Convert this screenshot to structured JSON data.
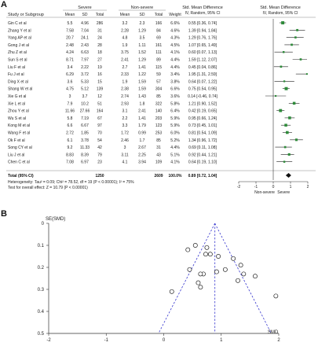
{
  "panels": {
    "a": "A",
    "b": "B"
  },
  "chart_data": [
    {
      "type": "table",
      "headers": {
        "study": "Study or Subgroup",
        "group1": "Severe",
        "group2": "Non-severe",
        "stat1": "Std. Mean Difference",
        "stat2": "Std. Mean Difference",
        "stat1_sub": "IV, Random, 95% CI",
        "stat2_sub": "IV, Random, 95% CI",
        "cols": [
          "Mean",
          "SD",
          "Total",
          "Mean",
          "SD",
          "Total",
          "Weight"
        ]
      },
      "studies": [
        {
          "name": "Gin C et al",
          "m1": "5.5",
          "sd1": "4.96",
          "n1": "286",
          "m2": "3.2",
          "sd2": "2.3",
          "n2": "166",
          "w": "6.6%",
          "ci": "0.55 [0.36, 0.74]",
          "smd": 0.55,
          "lo": 0.36,
          "hi": 0.74
        },
        {
          "name": "Zhang Y et al",
          "m1": "7.58",
          "sd1": "7.04",
          "n1": "31",
          "m2": "2.28",
          "sd2": "1.29",
          "n2": "84",
          "w": "4.6%",
          "ci": "1.39 [0.94, 1.84]",
          "smd": 1.39,
          "lo": 0.94,
          "hi": 1.84
        },
        {
          "name": "Yang AP et al",
          "m1": "20.7",
          "sd1": "24.1",
          "n1": "24",
          "m2": "4.8",
          "sd2": "3.5",
          "n2": "69",
          "w": "4.3%",
          "ci": "1.29 [0.76, 1.76]",
          "smd": 1.29,
          "lo": 0.76,
          "hi": 1.76
        },
        {
          "name": "Gong J et al",
          "m1": "2.48",
          "sd1": "2.43",
          "n1": "28",
          "m2": "1.9",
          "sd2": "1.11",
          "n2": "161",
          "w": "4.5%",
          "ci": "1.07 [0.65, 1.49]",
          "smd": 1.07,
          "lo": 0.65,
          "hi": 1.49
        },
        {
          "name": "Zhu Z et al",
          "m1": "4.24",
          "sd1": "6.63",
          "n1": "18",
          "m2": "3.75",
          "sd2": "1.52",
          "n2": "111",
          "w": "4.1%",
          "ci": "0.60 [0.07, 1.13]",
          "smd": 0.6,
          "lo": 0.07,
          "hi": 1.13
        },
        {
          "name": "Sun S et al",
          "m1": "8.71",
          "sd1": "7.97",
          "n1": "27",
          "m2": "2.41",
          "sd2": "1.29",
          "n2": "89",
          "w": "4.4%",
          "ci": "1.59 [1.12, 2.07]",
          "smd": 1.59,
          "lo": 1.12,
          "hi": 2.07
        },
        {
          "name": "Liu F et al",
          "m1": "3.4",
          "sd1": "2.22",
          "n1": "19",
          "m2": "2.7",
          "sd2": "1.41",
          "n2": "115",
          "w": "4.4%",
          "ci": "0.45 [0.04, 0.86]",
          "smd": 0.45,
          "lo": 0.04,
          "hi": 0.86
        },
        {
          "name": "Fu J et al",
          "m1": "6.29",
          "sd1": "3.72",
          "n1": "16",
          "m2": "2.33",
          "sd2": "1.22",
          "n2": "59",
          "w": "3.4%",
          "ci": "1.95 [1.31, 2.59]",
          "smd": 1.95,
          "lo": 1.31,
          "hi": 2.59
        },
        {
          "name": "Ding X et al",
          "m1": "3.6",
          "sd1": "5.33",
          "n1": "15",
          "m2": "1.9",
          "sd2": "1.59",
          "n2": "57",
          "w": "3.8%",
          "ci": "0.64 [0.07, 1.22]",
          "smd": 0.64,
          "lo": 0.07,
          "hi": 1.22
        },
        {
          "name": "Shang W et al",
          "m1": "4.75",
          "sd1": "5.12",
          "n1": "139",
          "m2": "2.38",
          "sd2": "1.59",
          "n2": "304",
          "w": "6.6%",
          "ci": "0.75 [0.54, 0.95]",
          "smd": 0.75,
          "lo": 0.54,
          "hi": 0.95
        },
        {
          "name": "Xie G et al",
          "m1": "3",
          "sd1": "3.7",
          "n1": "12",
          "m2": "2.74",
          "sd2": "1.43",
          "n2": "85",
          "w": "3.6%",
          "ci": "0.14 [-0.46, 0.74]",
          "smd": 0.14,
          "lo": -0.46,
          "hi": 0.74
        },
        {
          "name": "Xie L et al",
          "m1": "7.9",
          "sd1": "10.2",
          "n1": "51",
          "m2": "2.93",
          "sd2": "1.8",
          "n2": "322",
          "w": "5.8%",
          "ci": "1.21 [0.90, 1.52]",
          "smd": 1.21,
          "lo": 0.9,
          "hi": 1.52
        },
        {
          "name": "Zhou Y et al",
          "m1": "11.66",
          "sd1": "27.66",
          "n1": "164",
          "m2": "3.1",
          "sd2": "2.41",
          "n2": "140",
          "w": "6.4%",
          "ci": "0.42 [0.19, 0.65]",
          "smd": 0.42,
          "lo": 0.19,
          "hi": 0.65
        },
        {
          "name": "Wu S et al",
          "m1": "5.8",
          "sd1": "7.19",
          "n1": "67",
          "m2": "2.2",
          "sd2": "1.41",
          "n2": "203",
          "w": "5.9%",
          "ci": "0.95 [0.66, 1.24]",
          "smd": 0.95,
          "lo": 0.66,
          "hi": 1.24
        },
        {
          "name": "Kong M et al",
          "m1": "6.6",
          "sd1": "6.67",
          "n1": "97",
          "m2": "3.3",
          "sd2": "1.79",
          "n2": "123",
          "w": "5.9%",
          "ci": "0.73 [0.45, 1.01]",
          "smd": 0.73,
          "lo": 0.45,
          "hi": 1.01
        },
        {
          "name": "Wang F et al",
          "m1": "2.72",
          "sd1": "1.85",
          "n1": "70",
          "m2": "1.72",
          "sd2": "0.99",
          "n2": "253",
          "w": "6.0%",
          "ci": "0.81 [0.54, 1.09]",
          "smd": 0.81,
          "lo": 0.54,
          "hi": 1.09
        },
        {
          "name": "Ok F et al",
          "m1": "6.1",
          "sd1": "3.78",
          "n1": "54",
          "m2": "2.46",
          "sd2": "1.7",
          "n2": "85",
          "w": "5.2%",
          "ci": "1.34 [0.96, 1.72]",
          "smd": 1.34,
          "lo": 0.96,
          "hi": 1.72
        },
        {
          "name": "Song CY et al",
          "m1": "9.2",
          "sd1": "11.33",
          "n1": "42",
          "m2": "3",
          "sd2": "2.67",
          "n2": "31",
          "w": "4.4%",
          "ci": "0.69 [0.11, 1.08]",
          "smd": 0.69,
          "lo": 0.11,
          "hi": 1.08
        },
        {
          "name": "Liu J et al",
          "m1": "8.83",
          "sd1": "8.39",
          "n1": "79",
          "m2": "3.11",
          "sd2": "2.25",
          "n2": "43",
          "w": "5.1%",
          "ci": "0.92 [0.44, 1.21]",
          "smd": 0.92,
          "lo": 0.44,
          "hi": 1.21
        },
        {
          "name": "Chen C et al",
          "m1": "7.08",
          "sd1": "6.97",
          "n1": "23",
          "m2": "4.1",
          "sd2": "3.94",
          "n2": "109",
          "w": "4.1%",
          "ci": "0.64 [0.19, 1.10]",
          "smd": 0.64,
          "lo": 0.19,
          "hi": 1.1
        }
      ],
      "total": {
        "name": "Total (95% CI)",
        "n1": "1250",
        "n2": "2609",
        "w": "100.0%",
        "ci": "0.89 [0.72, 1.04]",
        "smd": 0.89,
        "lo": 0.72,
        "hi": 1.04
      },
      "heterogeneity": "Heterogeneity: Tau² = 0.09; Chi² = 78.52, df = 19 (P < 0.00001); I² = 75%",
      "overall": "Test for overall effect: Z = 10.79 (P < 0.00001)",
      "axis": {
        "ticks": [
          -2,
          -1,
          0,
          1,
          2
        ],
        "labels": [
          "-2",
          "-1",
          "0",
          "1",
          "2"
        ],
        "left_label": "Non-severe",
        "right_label": "Severe"
      }
    },
    {
      "type": "scatter",
      "xlabel": "SMD",
      "ylabel": "SE(SMD)",
      "xlim": [
        -2,
        2
      ],
      "ylim": [
        0,
        0.5
      ],
      "y_reversed": true,
      "yticks": [
        0,
        0.1,
        0.2,
        0.3,
        0.4,
        0.5
      ],
      "ytick_labels": [
        "0",
        "0.1",
        "0.2",
        "0.3",
        "0.4",
        "0.5"
      ],
      "xticks": [
        -2,
        -1,
        0,
        1,
        2
      ],
      "xtick_labels": [
        "-2",
        "-1",
        "0",
        "1",
        "2"
      ],
      "pooled_smd": 0.89,
      "points": [
        {
          "x": 0.55,
          "y": 0.1
        },
        {
          "x": 1.39,
          "y": 0.23
        },
        {
          "x": 1.29,
          "y": 0.26
        },
        {
          "x": 1.07,
          "y": 0.21
        },
        {
          "x": 0.6,
          "y": 0.27
        },
        {
          "x": 1.59,
          "y": 0.24
        },
        {
          "x": 0.45,
          "y": 0.21
        },
        {
          "x": 1.95,
          "y": 0.33
        },
        {
          "x": 0.64,
          "y": 0.29
        },
        {
          "x": 0.75,
          "y": 0.11
        },
        {
          "x": 0.14,
          "y": 0.31
        },
        {
          "x": 1.21,
          "y": 0.16
        },
        {
          "x": 0.42,
          "y": 0.12
        },
        {
          "x": 0.95,
          "y": 0.15
        },
        {
          "x": 0.73,
          "y": 0.14
        },
        {
          "x": 0.81,
          "y": 0.14
        },
        {
          "x": 1.34,
          "y": 0.19
        },
        {
          "x": 0.69,
          "y": 0.23
        },
        {
          "x": 0.92,
          "y": 0.22
        },
        {
          "x": 0.64,
          "y": 0.23
        }
      ]
    }
  ]
}
